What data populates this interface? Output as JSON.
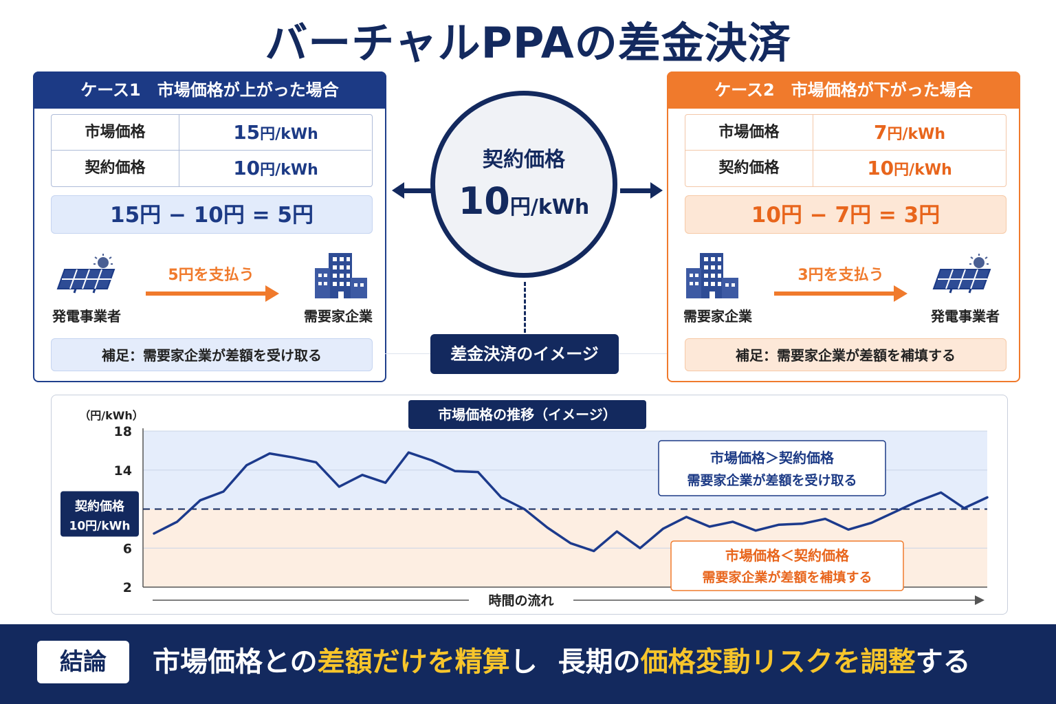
{
  "title": "バーチャルPPAの差金決済",
  "case1": {
    "header": "ケース1　市場価格が上がった場合",
    "market_label": "市場価格",
    "market_value": "15",
    "contract_label": "契約価格",
    "contract_value": "10",
    "unit": "円/kWh",
    "formula": "15円 − 10円 = 5円",
    "payment": "5円を支払う",
    "from_party": "発電事業者",
    "to_party": "需要家企業",
    "note": "補足：需要家企業が差額を受け取る"
  },
  "case2": {
    "header": "ケース2　市場価格が下がった場合",
    "market_label": "市場価格",
    "market_value": "7",
    "contract_label": "契約価格",
    "contract_value": "10",
    "unit": "円/kWh",
    "formula": "10円 − 7円 = 3円",
    "payment": "3円を支払う",
    "from_party": "需要家企業",
    "to_party": "発電事業者",
    "note": "補足：需要家企業が差額を補填する"
  },
  "center": {
    "label": "契約価格",
    "value": "10",
    "unit": "円/kWh",
    "tag": "差金決済のイメージ"
  },
  "chart_data": {
    "type": "line",
    "title": "市場価格の推移（イメージ）",
    "ylabel": "（円/kWh）",
    "xlabel": "時間の流れ",
    "y_ticks": [
      18,
      14,
      6,
      2
    ],
    "ylim": [
      2,
      18
    ],
    "reference": {
      "value": 10,
      "label_line1": "契約価格",
      "label_line2": "10円/kWh"
    },
    "series": [
      {
        "values": [
          7.5,
          8.7,
          10.9,
          11.8,
          14.5,
          15.7,
          15.3,
          14.8,
          12.3,
          13.5,
          12.7,
          15.8,
          15.0,
          13.9,
          13.8,
          11.2,
          10.0,
          8.1,
          6.5,
          5.7,
          7.7,
          6.0,
          8.0,
          9.2,
          8.2,
          8.7,
          7.8,
          8.4,
          8.5,
          9.0,
          7.9,
          8.6,
          9.7,
          10.8,
          11.7,
          10.1,
          11.2
        ]
      }
    ],
    "annotations": {
      "above_line1": "市場価格＞契約価格",
      "above_line2": "需要家企業が差額を受け取る",
      "below_line1": "市場価格＜契約価格",
      "below_line2": "需要家企業が差額を補填する"
    },
    "colors": {
      "line": "#1c3a8c",
      "above_fill": "#e5edfb",
      "below_fill": "#fdeee2",
      "reference": "#13295e"
    }
  },
  "conclusion": {
    "tag": "結論",
    "parts": [
      "市場価格との",
      "差額だけを精算",
      "し",
      "長期の",
      "価格変動リスクを調整",
      "する"
    ]
  },
  "colors": {
    "navy": "#13295e",
    "blue": "#1c3a85",
    "orange": "#f07a2c",
    "highlight": "#f7c52b"
  }
}
